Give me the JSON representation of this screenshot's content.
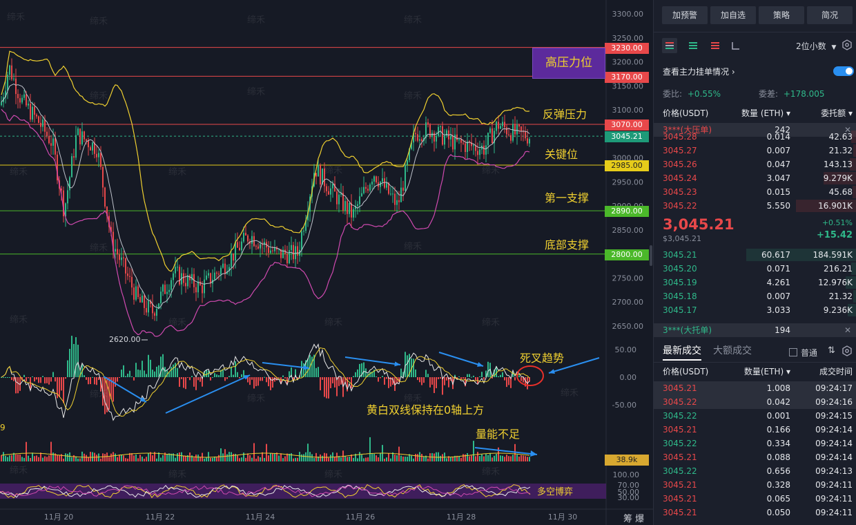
{
  "price_axis": {
    "ticks": [
      "3300.00",
      "3250.00",
      "3200.00",
      "3150.00",
      "3100.00",
      "3050.00",
      "3000.00",
      "2950.00",
      "2900.00",
      "2850.00",
      "2800.00",
      "2750.00",
      "2700.00",
      "2650.00"
    ],
    "macd_ticks": [
      "50.00",
      "0.00",
      "-50.00"
    ],
    "rsi_ticks": [
      "100.00",
      "70.00",
      "50.00",
      "30.00"
    ],
    "volume_label": "38.9k"
  },
  "date_axis": [
    "11月 20",
    "11月 22",
    "11月 24",
    "11月 26",
    "11月 28",
    "11月 30"
  ],
  "level_tags": {
    "r1": "3230.00",
    "r2": "3170.00",
    "r3": "3070.00",
    "current": "3045.21",
    "s1": "2985.00",
    "s2": "2890.00",
    "s3": "2800.00"
  },
  "annotations": {
    "resistance_box": "高压力位",
    "rebound": "反弹压力",
    "key": "关键位",
    "support1": "第一支撑",
    "bottom": "底部支撑",
    "low_label": "2620.00",
    "death_cross": "死叉趋势",
    "macd_note": "黄白双线保持在0轴上方",
    "volume_note": "量能不足",
    "rsi_note": "多空博弈",
    "watermark": "缔禾",
    "left_cut": "9",
    "axis_corner": "筹 爆"
  },
  "chart_data": {
    "type": "line",
    "x": [
      "11月 20",
      "11月 22",
      "11月 24",
      "11月 26",
      "11月 28"
    ],
    "ylim": [
      2620,
      3300
    ],
    "levels": [
      3230,
      3170,
      3070,
      3045.21,
      2985,
      2890,
      2800
    ],
    "low": 2620
  },
  "toolbar": {
    "buttons": [
      "加预警",
      "加自选",
      "策略",
      "简况"
    ],
    "decimal": "2位小数"
  },
  "orderbook": {
    "title": "查看主力挂单情况",
    "ratio_label": "委比:",
    "ratio_value": "+0.55%",
    "diff_label": "委差:",
    "diff_value": "+178.005",
    "headers": [
      "价格(USDT)",
      "数量 (ETH)",
      "委托额"
    ],
    "big_ask_label": "3***(大压单)",
    "big_ask_qty": "242",
    "asks": [
      {
        "price": "3045.28",
        "qty": "0.014",
        "total": "42.63",
        "depth": 0.05
      },
      {
        "price": "3045.27",
        "qty": "0.007",
        "total": "21.32",
        "depth": 0.03
      },
      {
        "price": "3045.26",
        "qty": "0.047",
        "total": "143.13",
        "depth": 0.06
      },
      {
        "price": "3045.24",
        "qty": "3.047",
        "total": "9.279K",
        "depth": 0.3
      },
      {
        "price": "3045.23",
        "qty": "0.015",
        "total": "45.68",
        "depth": 0.04
      },
      {
        "price": "3045.22",
        "qty": "5.550",
        "total": "16.901K",
        "depth": 0.55
      }
    ],
    "last_price": "3,045.21",
    "last_price_sub": "$3,045.21",
    "change_pct": "+0.51%",
    "change_abs": "+15.42",
    "bids": [
      {
        "price": "3045.21",
        "qty": "60.617",
        "total": "184.591K",
        "depth": 1.0
      },
      {
        "price": "3045.20",
        "qty": "0.071",
        "total": "216.21",
        "depth": 0.05
      },
      {
        "price": "3045.19",
        "qty": "4.261",
        "total": "12.976K",
        "depth": 0.1
      },
      {
        "price": "3045.18",
        "qty": "0.007",
        "total": "21.32",
        "depth": 0.03
      },
      {
        "price": "3045.17",
        "qty": "3.033",
        "total": "9.236K",
        "depth": 0.08
      }
    ],
    "big_bid_label": "3***(大托单)",
    "big_bid_qty": "194"
  },
  "trades": {
    "tab_latest": "最新成交",
    "tab_large": "大额成交",
    "normal_label": "普通",
    "headers": [
      "价格(USDT)",
      "数量(ETH)",
      "成交时间"
    ],
    "rows": [
      {
        "price": "3045.21",
        "qty": "1.008",
        "time": "09:24:17",
        "side": "sell"
      },
      {
        "price": "3045.22",
        "qty": "0.042",
        "time": "09:24:16",
        "side": "sell"
      },
      {
        "price": "3045.22",
        "qty": "0.001",
        "time": "09:24:15",
        "side": "buy"
      },
      {
        "price": "3045.21",
        "qty": "0.166",
        "time": "09:24:14",
        "side": "sell"
      },
      {
        "price": "3045.22",
        "qty": "0.334",
        "time": "09:24:14",
        "side": "buy"
      },
      {
        "price": "3045.21",
        "qty": "0.088",
        "time": "09:24:14",
        "side": "sell"
      },
      {
        "price": "3045.22",
        "qty": "0.656",
        "time": "09:24:13",
        "side": "buy"
      },
      {
        "price": "3045.21",
        "qty": "0.328",
        "time": "09:24:11",
        "side": "sell"
      },
      {
        "price": "3045.21",
        "qty": "0.065",
        "time": "09:24:11",
        "side": "sell"
      },
      {
        "price": "3045.21",
        "qty": "0.050",
        "time": "09:24:11",
        "side": "sell"
      }
    ]
  },
  "colors": {
    "up": "#2fb98a",
    "down": "#e8484a",
    "yellow": "#f0d030",
    "purple": "#5c2a9c",
    "blue": "#2a8ff0"
  }
}
